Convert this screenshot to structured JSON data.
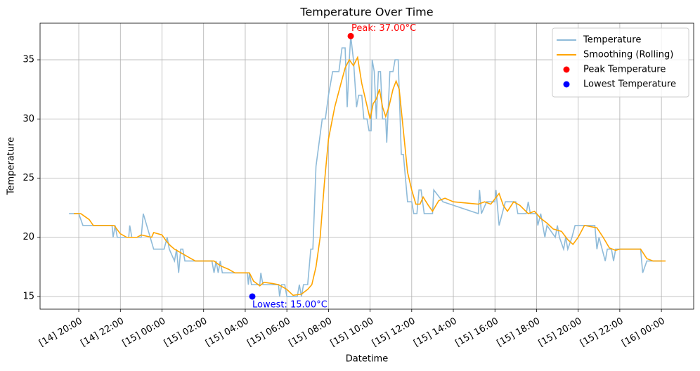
{
  "chart_data": {
    "type": "line",
    "title": "Temperature Over Time",
    "xlabel": "Datetime",
    "ylabel": "Temperature",
    "xlim": [
      18.14,
      49.55
    ],
    "ylim": [
      13.93,
      38.09
    ],
    "xticks": [
      {
        "value": 20,
        "label": "[14] 20:00"
      },
      {
        "value": 22,
        "label": "[14] 22:00"
      },
      {
        "value": 24,
        "label": "[15] 00:00"
      },
      {
        "value": 26,
        "label": "[15] 02:00"
      },
      {
        "value": 28,
        "label": "[15] 04:00"
      },
      {
        "value": 30,
        "label": "[15] 06:00"
      },
      {
        "value": 32,
        "label": "[15] 08:00"
      },
      {
        "value": 34,
        "label": "[15] 10:00"
      },
      {
        "value": 36,
        "label": "[15] 12:00"
      },
      {
        "value": 38,
        "label": "[15] 14:00"
      },
      {
        "value": 40,
        "label": "[15] 16:00"
      },
      {
        "value": 42,
        "label": "[15] 18:00"
      },
      {
        "value": 44,
        "label": "[15] 20:00"
      },
      {
        "value": 46,
        "label": "[15] 22:00"
      },
      {
        "value": 48,
        "label": "[16] 00:00"
      }
    ],
    "yticks": [
      15,
      20,
      25,
      30,
      35
    ],
    "grid": true,
    "legend": "upper right",
    "series": [
      {
        "name": "Temperature",
        "kind": "line",
        "color": "#8fbbd9",
        "x": [
          19.53,
          20.0,
          20.2,
          21.6,
          21.65,
          21.75,
          21.85,
          22.4,
          22.45,
          22.55,
          23.0,
          23.1,
          23.6,
          24.1,
          24.25,
          24.35,
          24.6,
          24.7,
          24.8,
          24.9,
          25.0,
          25.1,
          26.4,
          26.5,
          26.6,
          26.7,
          26.8,
          26.9,
          28.1,
          28.15,
          28.2,
          28.3,
          28.7,
          28.75,
          28.85,
          29.6,
          29.65,
          29.75,
          29.9,
          30.0,
          30.5,
          30.6,
          30.7,
          30.8,
          31.0,
          31.15,
          31.25,
          31.4,
          31.55,
          31.7,
          31.85,
          32.0,
          32.2,
          32.5,
          32.65,
          32.8,
          32.9,
          33.0,
          33.07,
          33.2,
          33.35,
          33.45,
          33.6,
          33.7,
          33.85,
          33.95,
          34.05,
          34.1,
          34.2,
          34.3,
          34.4,
          34.5,
          34.6,
          34.75,
          34.8,
          34.95,
          35.1,
          35.2,
          35.35,
          35.5,
          35.6,
          35.7,
          35.8,
          36.0,
          36.1,
          36.25,
          36.35,
          36.45,
          36.6,
          37.0,
          37.06,
          37.5,
          39.2,
          39.26,
          39.35,
          39.6,
          40.0,
          40.05,
          40.2,
          40.35,
          40.5,
          41.0,
          41.1,
          41.5,
          41.6,
          41.7,
          42.0,
          42.06,
          42.2,
          42.4,
          42.5,
          42.9,
          43.0,
          43.1,
          43.3,
          43.4,
          43.5,
          43.7,
          43.85,
          44.8,
          44.9,
          45.0,
          45.3,
          45.4,
          45.6,
          45.7,
          45.8,
          47.0,
          47.1,
          47.3,
          48.0
        ],
        "values": [
          22,
          22,
          21,
          21,
          20,
          21,
          20,
          20,
          21,
          20,
          20,
          22,
          19,
          19,
          20,
          19,
          18,
          19,
          17,
          19,
          19,
          18,
          18,
          17,
          18,
          17,
          18,
          17,
          17,
          16,
          17,
          16,
          16,
          17,
          16,
          16,
          15,
          16,
          16,
          15,
          15,
          16,
          15,
          16,
          16,
          19,
          19,
          26,
          28,
          30,
          30,
          32,
          34,
          34,
          36,
          36,
          31,
          35,
          37,
          35,
          31,
          32,
          32,
          30,
          30,
          29,
          29,
          35,
          34,
          30,
          34,
          34,
          30,
          30,
          28,
          34,
          34,
          35,
          35,
          27,
          27,
          25,
          23,
          23,
          22,
          22,
          24,
          24,
          22,
          22,
          24,
          23,
          22,
          24,
          22,
          23,
          23,
          24,
          21,
          22,
          23,
          23,
          22,
          22,
          23,
          22,
          22,
          21,
          22,
          20,
          21,
          20,
          21,
          20,
          19,
          20,
          19,
          20,
          21,
          21,
          19,
          20,
          18,
          19,
          19,
          18,
          19,
          19,
          17,
          18,
          18
        ]
      },
      {
        "name": "Smoothing (Rolling)",
        "kind": "line",
        "color": "#ffa500",
        "x": [
          19.76,
          20.1,
          20.5,
          20.7,
          21.7,
          22.0,
          22.3,
          22.8,
          23.0,
          23.5,
          23.6,
          24.0,
          24.2,
          24.4,
          24.6,
          24.9,
          25.1,
          25.3,
          25.6,
          26.5,
          26.8,
          27.2,
          27.5,
          28.2,
          28.4,
          28.7,
          28.9,
          29.3,
          29.6,
          30.0,
          30.3,
          30.7,
          31.0,
          31.2,
          31.4,
          31.6,
          31.8,
          32.0,
          32.3,
          32.6,
          32.8,
          33.0,
          33.2,
          33.4,
          33.6,
          33.8,
          34.0,
          34.15,
          34.3,
          34.45,
          34.6,
          34.75,
          34.9,
          35.1,
          35.25,
          35.4,
          35.6,
          35.8,
          36.0,
          36.2,
          36.4,
          36.55,
          36.8,
          37.0,
          37.3,
          37.6,
          38.0,
          39.2,
          39.5,
          39.8,
          40.2,
          40.4,
          40.6,
          40.9,
          41.2,
          41.6,
          41.9,
          42.2,
          42.5,
          42.8,
          43.2,
          43.5,
          43.75,
          44.0,
          44.3,
          44.9,
          45.2,
          45.5,
          45.8,
          46.0,
          47.0,
          47.3,
          47.6,
          48.2
        ],
        "values": [
          22,
          22,
          21.5,
          21,
          21,
          20.3,
          20,
          20,
          20.2,
          20,
          20.4,
          20.2,
          19.7,
          19.3,
          19,
          18.7,
          18.5,
          18.3,
          18,
          18,
          17.6,
          17.3,
          17,
          17,
          16.3,
          15.9,
          16.2,
          16.1,
          16,
          15.6,
          15.1,
          15.2,
          15.6,
          16,
          17.5,
          20,
          24.5,
          28.3,
          31,
          33,
          34.3,
          35,
          34.5,
          35.2,
          33,
          31.5,
          30,
          31.3,
          31.7,
          32.5,
          31,
          30.2,
          31,
          32.5,
          33.2,
          32.5,
          29,
          25.5,
          24,
          22.8,
          22.8,
          23.4,
          22.7,
          22.2,
          23.1,
          23.3,
          23,
          22.8,
          23,
          22.8,
          23.7,
          22.7,
          22.2,
          23,
          22.7,
          22,
          22.2,
          21.6,
          21.2,
          20.7,
          20.5,
          19.8,
          19.4,
          20,
          21,
          20.8,
          20,
          19.1,
          18.9,
          19,
          19,
          18.2,
          18,
          18
        ]
      },
      {
        "name": "Peak Temperature",
        "kind": "scatter",
        "color": "#ff0000",
        "x": [
          33.07
        ],
        "values": [
          37
        ],
        "annotation": "Peak: 37.00°C"
      },
      {
        "name": "Lowest Temperature",
        "kind": "scatter",
        "color": "#0000ff",
        "x": [
          28.34
        ],
        "values": [
          15
        ],
        "annotation": "Lowest: 15.00°C"
      }
    ]
  }
}
